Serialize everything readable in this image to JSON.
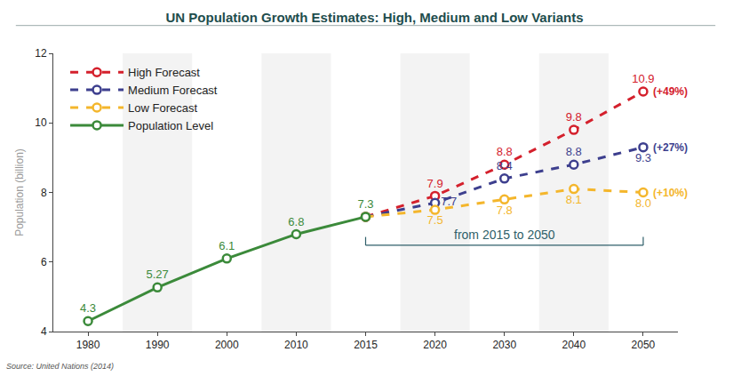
{
  "chart_data": {
    "type": "line",
    "title": "UN Population Growth Estimates: High, Medium and Low Variants",
    "y_label": "Population (billion)",
    "categories": [
      "1980",
      "1990",
      "2000",
      "2010",
      "2015",
      "2020",
      "2030",
      "2040",
      "2050"
    ],
    "ylim": [
      4,
      12
    ],
    "yticks": [
      4,
      6,
      8,
      10,
      12
    ],
    "grid": false,
    "legend": "top left",
    "data_labels": true,
    "series": [
      {
        "name": "High Forecast",
        "color": "#d4202c",
        "line_style": "dash",
        "marker": "circle",
        "values": [
          null,
          null,
          null,
          null,
          7.3,
          7.9,
          8.8,
          9.8,
          10.9
        ],
        "value_labels": [
          null,
          null,
          null,
          null,
          null,
          "7.9",
          "8.8",
          "9.8",
          "10.9"
        ],
        "annotation": "(+49%)"
      },
      {
        "name": "Medium Forecast",
        "color": "#3d3f8e",
        "line_style": "dash",
        "marker": "circle",
        "values": [
          null,
          null,
          null,
          null,
          7.3,
          7.7,
          8.4,
          8.8,
          9.3
        ],
        "value_labels": [
          null,
          null,
          null,
          null,
          null,
          "7.7",
          "8.4",
          "8.8",
          "9.3"
        ],
        "annotation": "(+27%)"
      },
      {
        "name": "Low Forecast",
        "color": "#f4b62c",
        "line_style": "dash",
        "marker": "circle",
        "values": [
          null,
          null,
          null,
          null,
          7.3,
          7.5,
          7.8,
          8.1,
          8.0
        ],
        "value_labels": [
          null,
          null,
          null,
          null,
          null,
          "7.5",
          "7.8",
          "8.1",
          "8.0"
        ],
        "annotation": "(+10%)"
      },
      {
        "name": "Population Level",
        "color": "#3b8a3a",
        "line_style": "solid",
        "marker": "circle",
        "values": [
          4.3,
          5.27,
          6.1,
          6.8,
          7.3,
          null,
          null,
          null,
          null
        ],
        "value_labels": [
          "4.3",
          "5.27",
          "6.1",
          "6.8",
          "7.3",
          null,
          null,
          null,
          null
        ]
      }
    ],
    "annotations": [
      "from 2015 to 2050"
    ],
    "source": "Source: United Nations (2014)"
  }
}
